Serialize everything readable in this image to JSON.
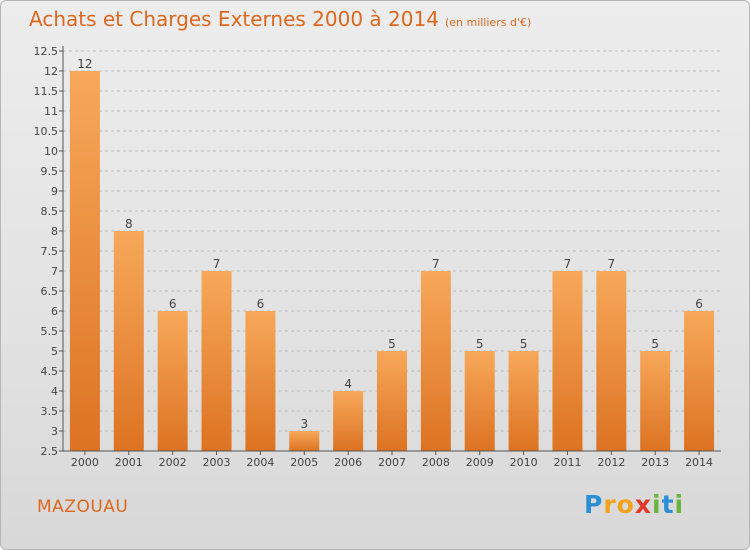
{
  "header": {
    "title": "Achats et Charges Externes 2000 à 2014",
    "subtitle": "(en milliers d'€)"
  },
  "footer": {
    "commune": "MAZOUAU",
    "logo_letters": [
      "P",
      "r",
      "o",
      "x",
      "i",
      "t",
      "i"
    ],
    "logo_colors": [
      "#2c8fd6",
      "#f3a21b",
      "#f3a21b",
      "#e23a2a",
      "#6bb43f",
      "#2c8fd6",
      "#6bb43f"
    ]
  },
  "colors": {
    "bar_top": "#f7a85a",
    "bar_bottom": "#dc7322",
    "axis": "#555555",
    "grid": "#bdbdbd",
    "text": "#444444"
  },
  "chart_data": {
    "type": "bar",
    "title": "Achats et Charges Externes 2000 à 2014",
    "subtitle": "(en milliers d'€)",
    "xlabel": "",
    "ylabel": "",
    "categories": [
      "2000",
      "2001",
      "2002",
      "2003",
      "2004",
      "2005",
      "2006",
      "2007",
      "2008",
      "2009",
      "2010",
      "2011",
      "2012",
      "2013",
      "2014"
    ],
    "values": [
      12,
      8,
      6,
      7,
      6,
      3,
      4,
      5,
      7,
      5,
      5,
      7,
      7,
      5,
      6
    ],
    "ylim": [
      2.5,
      12.5
    ],
    "yticks": [
      "2.5",
      "3",
      "3.5",
      "4",
      "4.5",
      "5",
      "5.5",
      "6",
      "6.5",
      "7",
      "7.5",
      "8",
      "8.5",
      "9",
      "9.5",
      "10",
      "10.5",
      "11",
      "11.5",
      "12",
      "12.5"
    ],
    "grid": true
  }
}
